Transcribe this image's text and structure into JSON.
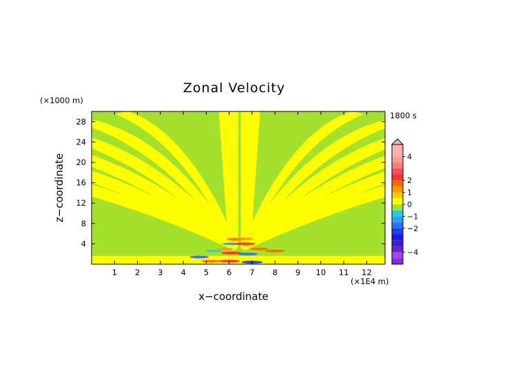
{
  "chart_data": {
    "type": "heatmap",
    "title": "Zonal Velocity",
    "time_label": "1800 s",
    "xlabel": "x−coordinate",
    "ylabel": "z−coordinate",
    "x_unit": "(×1E4 m)",
    "y_unit": "(×1000 m)",
    "xlim": [
      0,
      12.8
    ],
    "ylim": [
      0,
      30
    ],
    "x_ticks": [
      1,
      2,
      3,
      4,
      5,
      6,
      7,
      8,
      9,
      10,
      11,
      12
    ],
    "y_ticks": [
      4,
      8,
      12,
      16,
      20,
      24,
      28
    ],
    "colorbar": {
      "labels": [
        "4",
        "2",
        "1",
        "0",
        "−1",
        "−2",
        "−4"
      ],
      "label_values": [
        4,
        2,
        1,
        0,
        -1,
        -2,
        -4
      ],
      "range": [
        -5,
        5
      ],
      "bins": [
        {
          "from": -5.0,
          "to": -4.5,
          "color": "#8a2be2"
        },
        {
          "from": -4.5,
          "to": -4.0,
          "color": "#9f48e6"
        },
        {
          "from": -4.0,
          "to": -3.5,
          "color": "#6a1fd0"
        },
        {
          "from": -3.5,
          "to": -3.0,
          "color": "#3a20c8"
        },
        {
          "from": -3.0,
          "to": -2.5,
          "color": "#1a1ae0"
        },
        {
          "from": -2.5,
          "to": -2.0,
          "color": "#1f3ff0"
        },
        {
          "from": -2.0,
          "to": -1.5,
          "color": "#2f6ff5"
        },
        {
          "from": -1.5,
          "to": -1.0,
          "color": "#2fa0f0"
        },
        {
          "from": -1.0,
          "to": -0.5,
          "color": "#22ccdd"
        },
        {
          "from": -0.5,
          "to": 0.0,
          "color": "#a4e02e"
        },
        {
          "from": 0.0,
          "to": 0.5,
          "color": "#ffff00"
        },
        {
          "from": 0.5,
          "to": 1.0,
          "color": "#ffcc00"
        },
        {
          "from": 1.0,
          "to": 1.5,
          "color": "#ff9900"
        },
        {
          "from": 1.5,
          "to": 2.0,
          "color": "#ff6a00"
        },
        {
          "from": 2.0,
          "to": 2.5,
          "color": "#ff3030"
        },
        {
          "from": 2.5,
          "to": 3.0,
          "color": "#ff5050"
        },
        {
          "from": 3.0,
          "to": 3.5,
          "color": "#ff7a7a"
        },
        {
          "from": 3.5,
          "to": 4.0,
          "color": "#ff9a9a"
        },
        {
          "from": 4.0,
          "to": 5.0,
          "color": "#ffb0b0"
        }
      ]
    },
    "colors": {
      "background_field": "#a4e02e",
      "positive_band": "#ffff00"
    },
    "field_description_bands": [
      {
        "value": 0.3,
        "side": "both"
      }
    ],
    "anomalies": [
      {
        "x": 4.7,
        "z": 1.4,
        "value": -1.6
      },
      {
        "x": 5.3,
        "z": 2.6,
        "value": -1.0
      },
      {
        "x": 7.0,
        "z": 0.4,
        "value": -2.2
      },
      {
        "x": 8.0,
        "z": 2.6,
        "value": 1.8
      },
      {
        "x": 6.0,
        "z": 0.6,
        "value": 2.2
      },
      {
        "x": 5.2,
        "z": 0.6,
        "value": 1.6
      },
      {
        "x": 6.1,
        "z": 4.0,
        "value": -1.5
      },
      {
        "x": 6.7,
        "z": 4.0,
        "value": 2.0
      },
      {
        "x": 6.3,
        "z": 4.9,
        "value": 1.6
      },
      {
        "x": 6.7,
        "z": 5.0,
        "value": 1.2
      },
      {
        "x": 6.1,
        "z": 2.2,
        "value": 2.0
      },
      {
        "x": 6.8,
        "z": 2.0,
        "value": -1.8
      },
      {
        "x": 5.8,
        "z": 3.0,
        "value": 1.0
      },
      {
        "x": 7.3,
        "z": 3.0,
        "value": 1.5
      }
    ]
  }
}
